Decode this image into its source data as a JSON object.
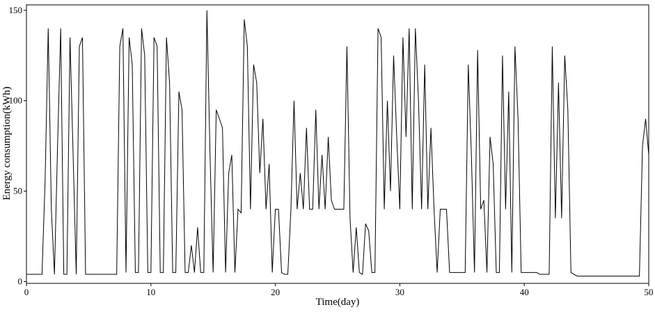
{
  "chart_data": {
    "type": "line",
    "xlabel": "Time(day)",
    "ylabel": "Energy consumption(kWh)",
    "color": "#000000",
    "xlim": [
      0,
      50
    ],
    "ylim": [
      -1,
      153
    ],
    "xticks": [
      0,
      10,
      20,
      30,
      40,
      50
    ],
    "yticks": [
      0,
      50,
      100,
      150
    ],
    "x": [
      0,
      0.25,
      0.5,
      0.75,
      1,
      1.25,
      1.5,
      1.75,
      2,
      2.25,
      2.5,
      2.75,
      3,
      3.25,
      3.5,
      3.75,
      4,
      4.25,
      4.5,
      4.75,
      5,
      5.25,
      5.5,
      5.75,
      6,
      6.25,
      6.5,
      6.75,
      7,
      7.25,
      7.5,
      7.75,
      8,
      8.25,
      8.5,
      8.75,
      9,
      9.25,
      9.5,
      9.75,
      10,
      10.25,
      10.5,
      10.75,
      11,
      11.25,
      11.5,
      11.75,
      12,
      12.25,
      12.5,
      12.75,
      13,
      13.25,
      13.5,
      13.75,
      14,
      14.25,
      14.5,
      14.75,
      15,
      15.25,
      15.5,
      15.75,
      16,
      16.25,
      16.5,
      16.75,
      17,
      17.25,
      17.5,
      17.75,
      18,
      18.25,
      18.5,
      18.75,
      19,
      19.25,
      19.5,
      19.75,
      20,
      20.25,
      20.5,
      20.75,
      21,
      21.25,
      21.5,
      21.75,
      22,
      22.25,
      22.5,
      22.75,
      23,
      23.25,
      23.5,
      23.75,
      24,
      24.25,
      24.5,
      24.75,
      25,
      25.25,
      25.5,
      25.75,
      26,
      26.25,
      26.5,
      26.75,
      27,
      27.25,
      27.5,
      27.75,
      28,
      28.25,
      28.5,
      28.75,
      29,
      29.25,
      29.5,
      29.75,
      30,
      30.25,
      30.5,
      30.75,
      31,
      31.25,
      31.5,
      31.75,
      32,
      32.25,
      32.5,
      32.75,
      33,
      33.25,
      33.5,
      33.75,
      34,
      34.25,
      34.5,
      34.75,
      35,
      35.25,
      35.5,
      35.75,
      36,
      36.25,
      36.5,
      36.75,
      37,
      37.25,
      37.5,
      37.75,
      38,
      38.25,
      38.5,
      38.75,
      39,
      39.25,
      39.5,
      39.75,
      40,
      40.25,
      40.5,
      40.75,
      41,
      41.25,
      41.5,
      41.75,
      42,
      42.25,
      42.5,
      42.75,
      43,
      43.25,
      43.5,
      43.75,
      44,
      44.25,
      44.5,
      44.75,
      45,
      45.25,
      45.5,
      45.75,
      46,
      46.25,
      46.5,
      46.75,
      47,
      47.25,
      47.5,
      47.75,
      48,
      48.25,
      48.5,
      48.75,
      49,
      49.25,
      49.5,
      49.75,
      50
    ],
    "values": [
      4,
      4,
      4,
      4,
      4,
      4,
      56,
      140,
      40,
      4,
      75,
      140,
      4,
      4,
      135,
      70,
      4,
      130,
      135,
      4,
      4,
      4,
      4,
      4,
      4,
      4,
      4,
      4,
      4,
      4,
      130,
      140,
      5,
      135,
      120,
      5,
      5,
      140,
      125,
      5,
      5,
      135,
      130,
      5,
      5,
      135,
      110,
      5,
      5,
      105,
      95,
      5,
      5,
      20,
      5,
      30,
      5,
      5,
      150,
      70,
      5,
      95,
      90,
      85,
      5,
      60,
      70,
      5,
      40,
      38,
      145,
      130,
      40,
      120,
      110,
      60,
      90,
      40,
      65,
      5,
      40,
      40,
      5,
      4,
      4,
      40,
      100,
      40,
      60,
      40,
      85,
      40,
      40,
      95,
      40,
      70,
      40,
      80,
      45,
      40,
      40,
      40,
      40,
      130,
      35,
      5,
      30,
      5,
      4,
      32,
      28,
      5,
      5,
      140,
      135,
      40,
      100,
      50,
      125,
      80,
      40,
      135,
      80,
      140,
      40,
      140,
      100,
      40,
      120,
      40,
      85,
      40,
      5,
      40,
      40,
      40,
      5,
      5,
      5,
      5,
      5,
      5,
      120,
      70,
      5,
      128,
      40,
      45,
      5,
      80,
      65,
      5,
      5,
      125,
      40,
      105,
      5,
      130,
      90,
      5,
      5,
      5,
      5,
      5,
      5,
      4,
      4,
      4,
      4,
      130,
      35,
      110,
      35,
      125,
      95,
      5,
      4,
      3,
      3,
      3,
      3,
      3,
      3,
      3,
      3,
      3,
      3,
      3,
      3,
      3,
      3,
      3,
      3,
      3,
      3,
      3,
      3,
      3,
      75,
      90,
      70
    ]
  }
}
